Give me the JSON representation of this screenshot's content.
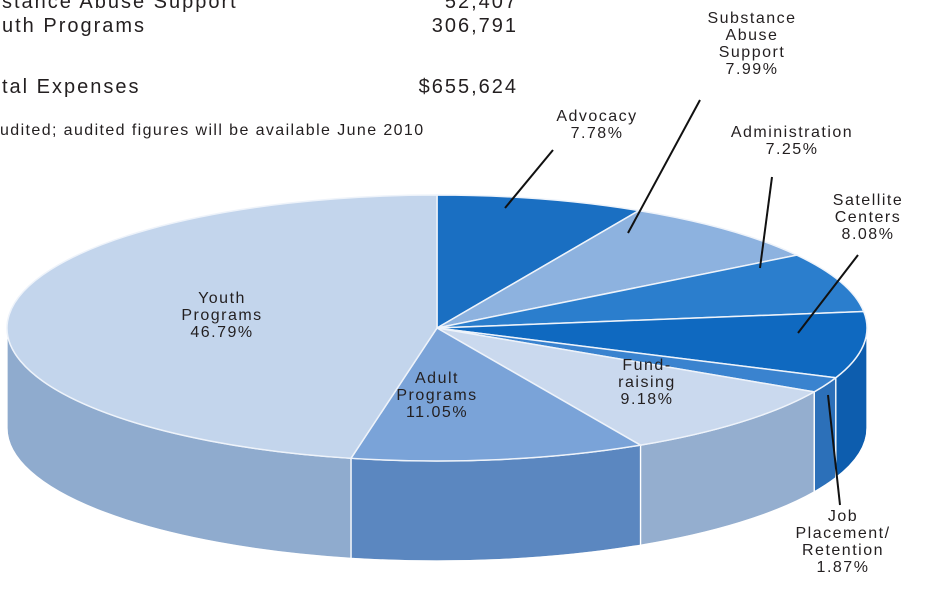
{
  "table": {
    "rows": [
      [
        "stance Abuse Support",
        "52,407"
      ],
      [
        "uth Programs",
        "306,791"
      ],
      [
        "tal Expenses",
        "$655,624"
      ]
    ],
    "note": "udited; audited figures will be available June 2010"
  },
  "chart_data": {
    "type": "pie",
    "categories": [
      "Advocacy",
      "Substance\nAbuse\nSupport",
      "Administration",
      "Satellite\nCenters",
      "Job\nPlacement/\nRetention",
      "Fund-\nraising",
      "Adult\nPrograms",
      "Youth\nPrograms"
    ],
    "values": [
      7.78,
      7.99,
      7.25,
      8.08,
      1.87,
      9.18,
      11.05,
      46.79
    ],
    "value_labels": [
      "7.78%",
      "7.99%",
      "7.25%",
      "8.08%",
      "1.87%",
      "9.18%",
      "11.05%",
      "46.79%"
    ],
    "colors": [
      "#1a6fc2",
      "#8db2df",
      "#2b7ecd",
      "#0f69c0",
      "#3a83cf",
      "#cad9ee",
      "#7aa3d8",
      "#c3d5ec"
    ]
  }
}
